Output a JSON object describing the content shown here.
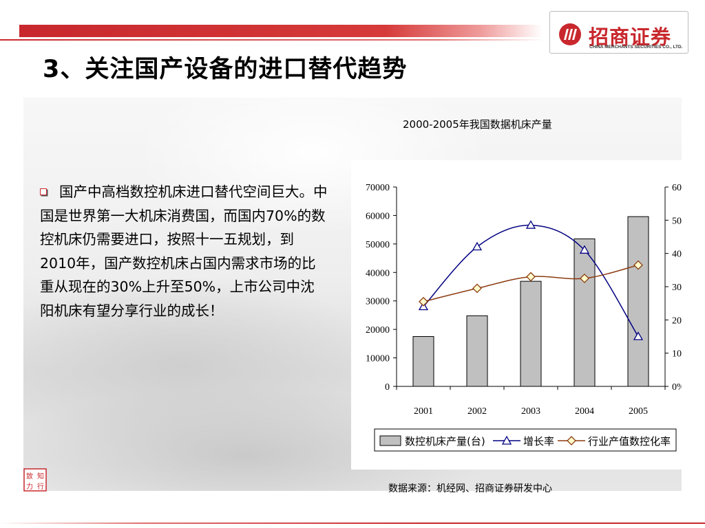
{
  "title": "3、关注国产设备的进口替代趋势",
  "logo": {
    "cn_name": "招商证券",
    "en_name": "CHINA MERCHANTS SECURITIES CO., LTD."
  },
  "bullet": {
    "text": "国产中高档数控机床进口替代空间巨大。中国是世界第一大机床消费国，而国内70%的数控机床仍需要进口，按照十一五规划，到2010年，国产数控机床占国内需求市场的比重从现在的30%上升至50%，上市公司中沈阳机床有望分享行业的成长！"
  },
  "source_note": "数据来源：机经网、招商证券研发中心",
  "seal_text": "致 知 力 行",
  "colors": {
    "brand_red": "#c8282d",
    "bar_fill": "#c0c0c0",
    "growth_line": "#000080",
    "ratio_line": "#8b3a0f",
    "ratio_marker": "#ffffcc"
  },
  "chart_data": {
    "type": "bar",
    "title": "2000-2005年我国数据机床产量",
    "categories": [
      "2001",
      "2002",
      "2003",
      "2004",
      "2005"
    ],
    "y_left_ticks": [
      "70000",
      "60000",
      "50000",
      "40000",
      "30000",
      "20000",
      "10000",
      "0"
    ],
    "y_right_ticks": [
      "60%",
      "50%",
      "40%",
      "30%",
      "20%",
      "10%",
      "0%"
    ],
    "ylim_left": [
      0,
      70000
    ],
    "ylim_right": [
      0,
      0.6
    ],
    "series": [
      {
        "name": "数控机床产量(台)",
        "type": "bar",
        "axis": "left",
        "values": [
          17500,
          24800,
          36900,
          51800,
          59600
        ]
      },
      {
        "name": "增长率",
        "type": "line",
        "axis": "right",
        "marker": "triangle",
        "values": [
          0.24,
          0.42,
          0.485,
          0.41,
          0.15
        ]
      },
      {
        "name": "行业产值数控化率",
        "type": "line",
        "axis": "right",
        "marker": "diamond",
        "values": [
          0.255,
          0.295,
          0.33,
          0.325,
          0.365
        ]
      }
    ],
    "grid": false,
    "legend": "bottom"
  }
}
